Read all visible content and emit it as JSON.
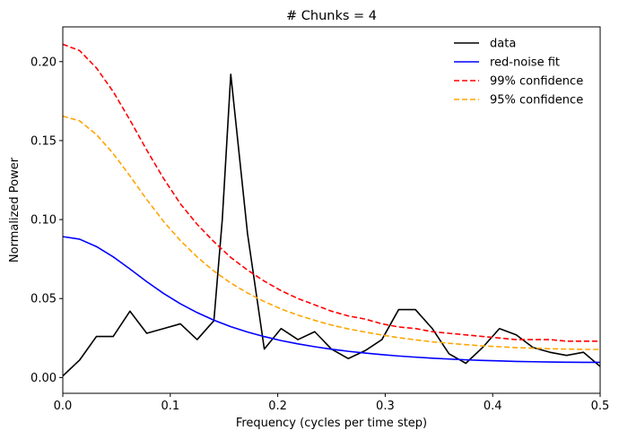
{
  "chart_data": {
    "type": "line",
    "title": "# Chunks = 4",
    "xlabel": "Frequency (cycles per time step)",
    "ylabel": "Normalized Power",
    "xlim": [
      0,
      0.5
    ],
    "ylim": [
      -0.01,
      0.222
    ],
    "xticks": [
      0,
      0.1,
      0.2,
      0.3,
      0.4,
      0.5
    ],
    "xtick_labels": [
      "0.0",
      "0.1",
      "0.2",
      "0.3",
      "0.4",
      "0.5"
    ],
    "yticks": [
      0,
      0.05,
      0.1,
      0.15,
      0.2
    ],
    "ytick_labels": [
      "0.00",
      "0.05",
      "0.10",
      "0.15",
      "0.20"
    ],
    "grid": false,
    "legend_position": "top-right",
    "series": [
      {
        "name": "data",
        "color": "#000000",
        "dash": "solid",
        "x": [
          0,
          0.0156,
          0.0313,
          0.0469,
          0.0625,
          0.0781,
          0.0938,
          0.1094,
          0.125,
          0.1406,
          0.1484,
          0.1563,
          0.1719,
          0.1875,
          0.2031,
          0.2188,
          0.2344,
          0.25,
          0.2656,
          0.2813,
          0.2969,
          0.3125,
          0.3281,
          0.3438,
          0.3594,
          0.375,
          0.3906,
          0.4063,
          0.4219,
          0.4375,
          0.4531,
          0.4688,
          0.4844,
          0.5
        ],
        "y": [
          0.001,
          0.011,
          0.026,
          0.026,
          0.042,
          0.028,
          0.031,
          0.034,
          0.024,
          0.036,
          0.1,
          0.192,
          0.091,
          0.018,
          0.031,
          0.024,
          0.029,
          0.018,
          0.012,
          0.017,
          0.024,
          0.043,
          0.043,
          0.031,
          0.015,
          0.009,
          0.019,
          0.031,
          0.027,
          0.019,
          0.016,
          0.014,
          0.016,
          0.007
        ]
      },
      {
        "name": "red-noise fit",
        "color": "#0000ff",
        "dash": "solid",
        "x": [
          0,
          0.0156,
          0.0313,
          0.0469,
          0.0625,
          0.0781,
          0.0938,
          0.1094,
          0.125,
          0.1406,
          0.1563,
          0.1719,
          0.1875,
          0.2031,
          0.2188,
          0.2344,
          0.25,
          0.2656,
          0.2813,
          0.2969,
          0.3125,
          0.3281,
          0.3438,
          0.3594,
          0.375,
          0.3906,
          0.4063,
          0.4219,
          0.4375,
          0.4531,
          0.4688,
          0.4844,
          0.5
        ],
        "y": [
          0.0892,
          0.0876,
          0.0829,
          0.0764,
          0.0687,
          0.0607,
          0.0532,
          0.0467,
          0.0411,
          0.0363,
          0.0322,
          0.0288,
          0.0259,
          0.0234,
          0.0213,
          0.0195,
          0.0179,
          0.0166,
          0.0155,
          0.0145,
          0.0136,
          0.0129,
          0.0122,
          0.0117,
          0.0112,
          0.0108,
          0.0105,
          0.0102,
          0.01,
          0.0098,
          0.0097,
          0.0096,
          0.0096
        ]
      },
      {
        "name": "99% confidence",
        "color": "#ff0000",
        "dash": "dashed",
        "x": [
          0,
          0.0156,
          0.0313,
          0.0469,
          0.0625,
          0.0781,
          0.0938,
          0.1094,
          0.125,
          0.1406,
          0.1563,
          0.1719,
          0.1875,
          0.2031,
          0.2188,
          0.2344,
          0.25,
          0.2656,
          0.2813,
          0.2969,
          0.3125,
          0.3281,
          0.3438,
          0.3594,
          0.375,
          0.3906,
          0.4063,
          0.4219,
          0.4375,
          0.4531,
          0.4688,
          0.4844,
          0.5
        ],
        "y": [
          0.211,
          0.207,
          0.196,
          0.181,
          0.163,
          0.144,
          0.126,
          0.11,
          0.097,
          0.086,
          0.076,
          0.068,
          0.061,
          0.055,
          0.05,
          0.046,
          0.042,
          0.039,
          0.037,
          0.034,
          0.032,
          0.031,
          0.029,
          0.028,
          0.027,
          0.026,
          0.025,
          0.024,
          0.024,
          0.024,
          0.023,
          0.023,
          0.023
        ]
      },
      {
        "name": "95% confidence",
        "color": "#ffa500",
        "dash": "dashed",
        "x": [
          0,
          0.0156,
          0.0313,
          0.0469,
          0.0625,
          0.0781,
          0.0938,
          0.1094,
          0.125,
          0.1406,
          0.1563,
          0.1719,
          0.1875,
          0.2031,
          0.2188,
          0.2344,
          0.25,
          0.2656,
          0.2813,
          0.2969,
          0.3125,
          0.3281,
          0.3438,
          0.3594,
          0.375,
          0.3906,
          0.4063,
          0.4219,
          0.4375,
          0.4531,
          0.4688,
          0.4844,
          0.5
        ],
        "y": [
          0.1655,
          0.1625,
          0.1538,
          0.1418,
          0.1276,
          0.1127,
          0.0988,
          0.0867,
          0.0763,
          0.0674,
          0.0598,
          0.0535,
          0.0481,
          0.0434,
          0.0395,
          0.0362,
          0.0332,
          0.0308,
          0.0288,
          0.0269,
          0.0252,
          0.0239,
          0.0226,
          0.0217,
          0.0208,
          0.02,
          0.0195,
          0.0189,
          0.0186,
          0.0182,
          0.018,
          0.0178,
          0.0178
        ]
      }
    ]
  }
}
